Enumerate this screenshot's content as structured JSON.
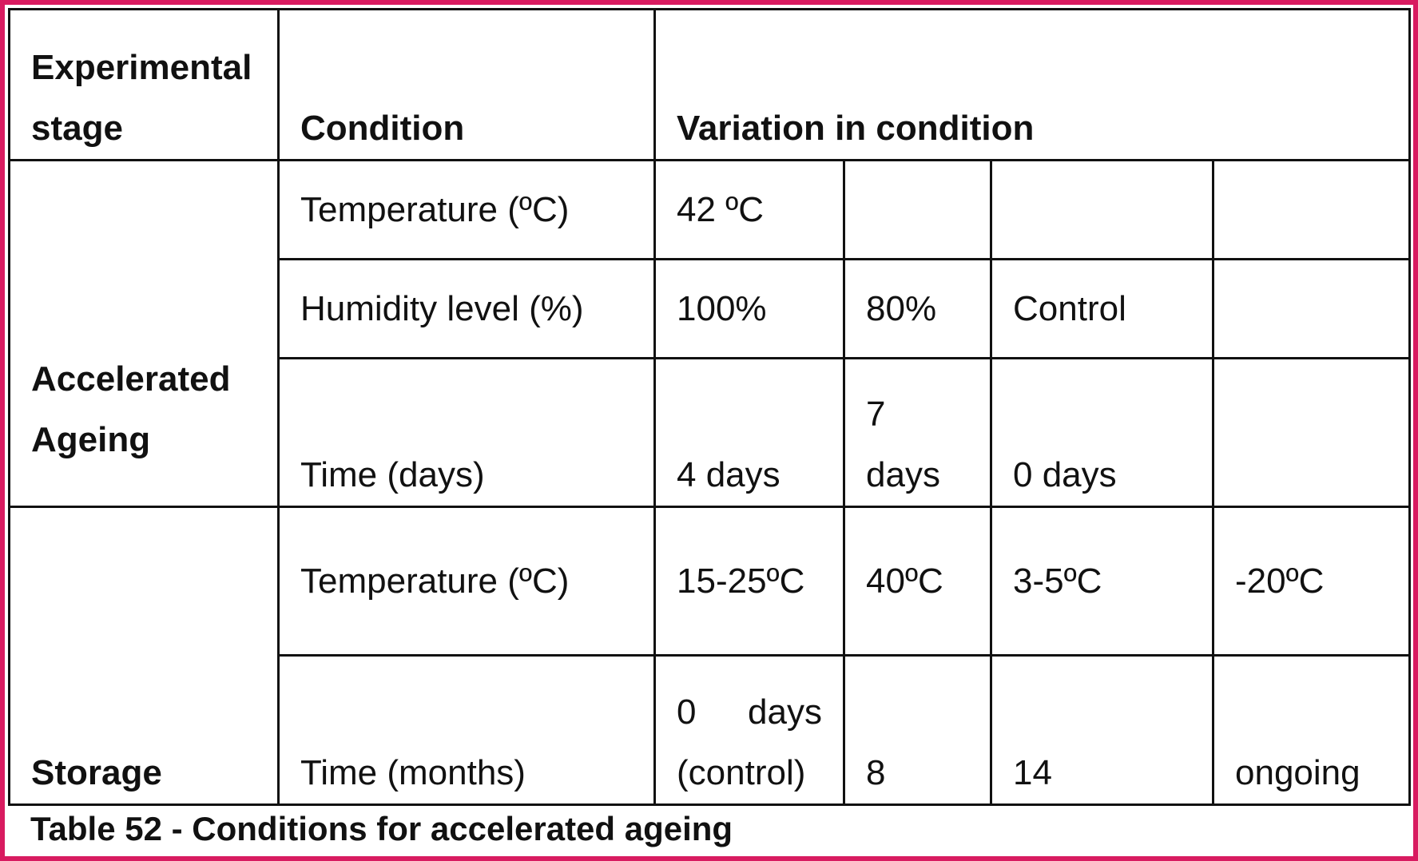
{
  "header": {
    "experimental_stage": "Experimental stage",
    "condition": "Condition",
    "variation": "Variation in condition"
  },
  "sections": [
    {
      "stage": "Accelerated Ageing",
      "rows": [
        {
          "condition": "Temperature (ºC)",
          "values": [
            "42 ºC",
            "",
            "",
            ""
          ]
        },
        {
          "condition": "Humidity level (%)",
          "values": [
            "100%",
            "80%",
            "Control",
            ""
          ]
        },
        {
          "condition": "Time (days)",
          "values": [
            "4 days",
            "7 days",
            "0 days",
            ""
          ]
        }
      ]
    },
    {
      "stage": "Storage",
      "rows": [
        {
          "condition": "Temperature (ºC)",
          "values": [
            "15-25ºC",
            "40ºC",
            "3-5ºC",
            "-20ºC"
          ]
        },
        {
          "condition": "Time (months)",
          "values": [
            "0 days (control)",
            "8",
            "14",
            "ongoing"
          ]
        }
      ]
    }
  ],
  "value_parts": {
    "storage_time_first_line": [
      "0",
      "days"
    ],
    "storage_time_first_second": "(control)"
  },
  "caption": "Table 52 - Conditions for accelerated ageing",
  "colors": {
    "frame": "#d81b60",
    "rule": "#111111"
  }
}
